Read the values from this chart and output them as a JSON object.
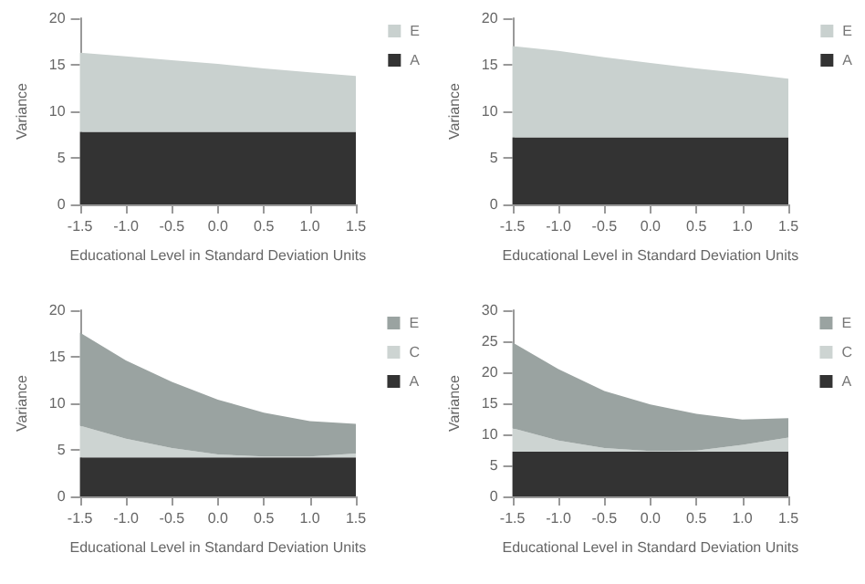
{
  "chart_data": [
    {
      "type": "area",
      "stacked": true,
      "xlabel": "Educational Level in Standard Deviation Units",
      "ylabel": "Variance",
      "legend": "top right",
      "grid": false,
      "x": [
        -1.5,
        -1,
        -0.5,
        0,
        0.5,
        1,
        1.5
      ],
      "xlim": [
        -1.5,
        1.5
      ],
      "xticks": [
        -1.5,
        {
          "value": -1,
          "label": "-1.0"
        },
        -0.5,
        {
          "value": 0,
          "label": "0.0"
        },
        0.5,
        {
          "value": 1,
          "label": "1.0"
        },
        1.5
      ],
      "ylim": [
        0,
        20
      ],
      "yticks": [
        0,
        5,
        10,
        15,
        20
      ],
      "series": [
        {
          "name": "A",
          "color": "#333333",
          "values": [
            7.8,
            7.8,
            7.8,
            7.8,
            7.8,
            7.8,
            7.8
          ]
        },
        {
          "name": "E",
          "color": "#c9d1cf",
          "values": [
            8.5,
            8.1,
            7.7,
            7.3,
            6.8,
            6.4,
            6.0
          ]
        }
      ]
    },
    {
      "type": "area",
      "stacked": true,
      "xlabel": "Educational Level in Standard Deviation Units",
      "ylabel": "Variance",
      "legend": "top right",
      "grid": false,
      "x": [
        -1.5,
        -1,
        -0.5,
        0,
        0.5,
        1,
        1.5
      ],
      "xlim": [
        -1.5,
        1.5
      ],
      "xticks": [
        -1.5,
        {
          "value": -1,
          "label": "-1.0"
        },
        -0.5,
        {
          "value": 0,
          "label": "0.0"
        },
        0.5,
        {
          "value": 1,
          "label": "1.0"
        },
        1.5
      ],
      "ylim": [
        0,
        20
      ],
      "yticks": [
        0,
        5,
        10,
        15,
        20
      ],
      "series": [
        {
          "name": "A",
          "color": "#333333",
          "values": [
            7.2,
            7.2,
            7.2,
            7.2,
            7.2,
            7.2,
            7.2
          ]
        },
        {
          "name": "E",
          "color": "#c9d1cf",
          "values": [
            9.8,
            9.3,
            8.6,
            8.0,
            7.4,
            6.9,
            6.3
          ]
        }
      ]
    },
    {
      "type": "area",
      "stacked": true,
      "xlabel": "Educational Level in Standard Deviation Units",
      "ylabel": "Variance",
      "legend": "top right",
      "grid": false,
      "x": [
        -1.5,
        -1,
        -0.5,
        0,
        0.5,
        1,
        1.5
      ],
      "xlim": [
        -1.5,
        1.5
      ],
      "xticks": [
        -1.5,
        {
          "value": -1,
          "label": "-1.0"
        },
        -0.5,
        {
          "value": 0,
          "label": "0.0"
        },
        0.5,
        {
          "value": 1,
          "label": "1.0"
        },
        1.5
      ],
      "ylim": [
        0,
        20
      ],
      "yticks": [
        0,
        5,
        10,
        15,
        20
      ],
      "series": [
        {
          "name": "A",
          "color": "#333333",
          "values": [
            4.2,
            4.2,
            4.2,
            4.2,
            4.2,
            4.2,
            4.2
          ]
        },
        {
          "name": "C",
          "color": "#cdd4d2",
          "values": [
            3.4,
            2.0,
            1.0,
            0.3,
            0.1,
            0.1,
            0.4
          ]
        },
        {
          "name": "E",
          "color": "#9aa3a1",
          "values": [
            10.0,
            8.4,
            7.1,
            5.9,
            4.7,
            3.8,
            3.2
          ]
        }
      ]
    },
    {
      "type": "area",
      "stacked": true,
      "xlabel": "Educational Level in Standard Deviation Units",
      "ylabel": "Variance",
      "legend": "top right",
      "grid": false,
      "x": [
        -1.5,
        -1,
        -0.5,
        0,
        0.5,
        1,
        1.5
      ],
      "xlim": [
        -1.5,
        1.5
      ],
      "xticks": [
        -1.5,
        {
          "value": -1,
          "label": "-1.0"
        },
        -0.5,
        {
          "value": 0,
          "label": "0.0"
        },
        0.5,
        {
          "value": 1,
          "label": "1.0"
        },
        1.5
      ],
      "ylim": [
        0,
        30
      ],
      "yticks": [
        0,
        5,
        10,
        15,
        20,
        25,
        30
      ],
      "series": [
        {
          "name": "A",
          "color": "#333333",
          "values": [
            7.2,
            7.2,
            7.2,
            7.2,
            7.2,
            7.2,
            7.2
          ]
        },
        {
          "name": "C",
          "color": "#cdd4d2",
          "values": [
            3.8,
            1.8,
            0.6,
            0.1,
            0.2,
            1.1,
            2.3
          ]
        },
        {
          "name": "E",
          "color": "#9aa3a1",
          "values": [
            13.8,
            11.5,
            9.2,
            7.5,
            5.9,
            4.1,
            3.1
          ]
        }
      ]
    }
  ]
}
